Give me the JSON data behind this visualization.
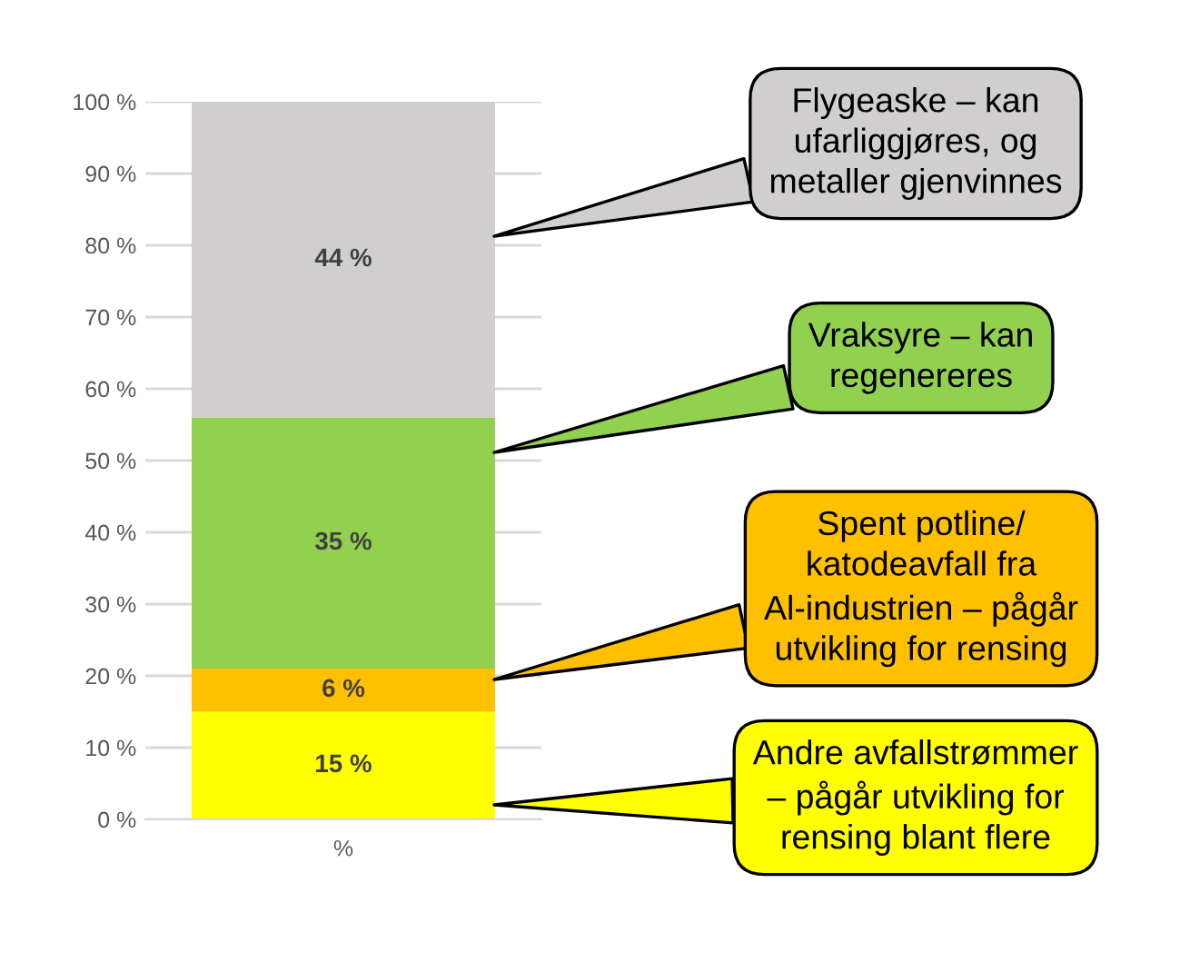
{
  "chart_data": {
    "type": "bar",
    "stacked": true,
    "categories": [
      "%"
    ],
    "series": [
      {
        "color": "#ffff00",
        "values": [
          15
        ],
        "value_labels": [
          "15 %"
        ]
      },
      {
        "color": "#ffc000",
        "values": [
          6
        ],
        "value_labels": [
          "6 %"
        ]
      },
      {
        "color": "#92d050",
        "values": [
          35
        ],
        "value_labels": [
          "35 %"
        ]
      },
      {
        "color": "#d0cece",
        "values": [
          44
        ],
        "value_labels": [
          "44 %"
        ]
      }
    ],
    "ylim": [
      0,
      100
    ],
    "yticks": [
      {
        "value": 0,
        "label": "0 %"
      },
      {
        "value": 10,
        "label": "10 %"
      },
      {
        "value": 20,
        "label": "20 %"
      },
      {
        "value": 30,
        "label": "30 %"
      },
      {
        "value": 40,
        "label": "40 %"
      },
      {
        "value": 50,
        "label": "50 %"
      },
      {
        "value": 60,
        "label": "60 %"
      },
      {
        "value": 70,
        "label": "70 %"
      },
      {
        "value": 80,
        "label": "80 %"
      },
      {
        "value": 90,
        "label": "90 %"
      },
      {
        "value": 100,
        "label": "100 %"
      }
    ],
    "grid": "y",
    "annotations": [
      "Flygeaske – kan\nufarliggjøres, og\nmetaller gjenvinnes",
      "Vraksyre – kan\nregenereres",
      "Spent potline/\nkatodeavfall fra\nAl-industrien – pågår\nutvikling for rensing",
      "Andre avfallstrømmer\n– pågår utvikling for\nrensing blant flere"
    ]
  }
}
